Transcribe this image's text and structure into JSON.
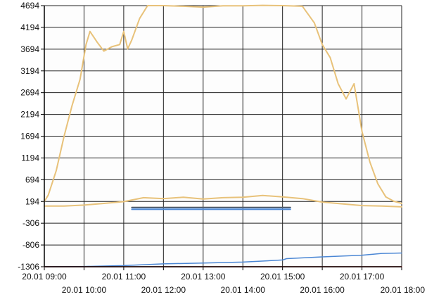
{
  "chart_data": {
    "type": "line",
    "title": "",
    "xlabel": "",
    "ylabel": "",
    "ylim": [
      -1306,
      4694
    ],
    "xlim": [
      "20.01 09:00",
      "20.01 18:00"
    ],
    "x_ticks": [
      "20.01 09:00",
      "20.01 10:00",
      "20.01 11:00",
      "20.01 12:00",
      "20.01 13:00",
      "20.01 14:00",
      "20.01 15:00",
      "20.01 16:00",
      "20.01 17:00",
      "20.01 18:00"
    ],
    "y_ticks": [
      "4694",
      "4194",
      "3694",
      "3194",
      "2694",
      "2194",
      "1694",
      "1194",
      "694",
      "194",
      "-306",
      "-806",
      "-1306"
    ],
    "grid": true,
    "series": [
      {
        "color": "#e8c27a",
        "points": [
          [
            "09:00",
            194
          ],
          [
            "09:06",
            340
          ],
          [
            "09:18",
            900
          ],
          [
            "09:30",
            1700
          ],
          [
            "09:42",
            2400
          ],
          [
            "09:54",
            3000
          ],
          [
            "10:03",
            3800
          ],
          [
            "10:09",
            4100
          ],
          [
            "10:20",
            3850
          ],
          [
            "10:30",
            3650
          ],
          [
            "10:42",
            3750
          ],
          [
            "10:54",
            3800
          ],
          [
            "11:00",
            4100
          ],
          [
            "11:06",
            3700
          ],
          [
            "11:12",
            3900
          ],
          [
            "11:24",
            4400
          ],
          [
            "11:36",
            4694
          ],
          [
            "12:00",
            4694
          ],
          [
            "12:30",
            4680
          ],
          [
            "13:00",
            4660
          ],
          [
            "13:30",
            4690
          ],
          [
            "14:00",
            4690
          ],
          [
            "14:30",
            4700
          ],
          [
            "15:00",
            4694
          ],
          [
            "15:30",
            4680
          ],
          [
            "15:48",
            4300
          ],
          [
            "16:00",
            3800
          ],
          [
            "16:12",
            3500
          ],
          [
            "16:24",
            2900
          ],
          [
            "16:36",
            2550
          ],
          [
            "16:48",
            2900
          ],
          [
            "17:00",
            1800
          ],
          [
            "17:12",
            1100
          ],
          [
            "17:24",
            600
          ],
          [
            "17:36",
            300
          ],
          [
            "17:48",
            200
          ],
          [
            "18:00",
            150
          ]
        ]
      },
      {
        "color": "#e8c27a",
        "points": [
          [
            "09:00",
            90
          ],
          [
            "09:30",
            90
          ],
          [
            "10:00",
            110
          ],
          [
            "10:30",
            150
          ],
          [
            "11:00",
            190
          ],
          [
            "11:30",
            280
          ],
          [
            "12:00",
            260
          ],
          [
            "12:30",
            290
          ],
          [
            "13:00",
            250
          ],
          [
            "13:30",
            280
          ],
          [
            "14:00",
            290
          ],
          [
            "14:30",
            330
          ],
          [
            "15:00",
            300
          ],
          [
            "15:30",
            260
          ],
          [
            "16:00",
            180
          ],
          [
            "16:30",
            140
          ],
          [
            "17:00",
            100
          ],
          [
            "17:30",
            90
          ],
          [
            "18:00",
            70
          ]
        ]
      },
      {
        "color": "#4a86d4",
        "points": [
          [
            "09:00",
            -1306
          ],
          [
            "10:00",
            -1300
          ],
          [
            "11:00",
            -1280
          ],
          [
            "12:00",
            -1240
          ],
          [
            "13:00",
            -1220
          ],
          [
            "14:00",
            -1200
          ],
          [
            "15:00",
            -1150
          ],
          [
            "15:06",
            -1120
          ],
          [
            "16:00",
            -1080
          ],
          [
            "17:00",
            -1040
          ],
          [
            "17:30",
            -1000
          ],
          [
            "18:00",
            -990
          ]
        ]
      },
      {
        "color": "#e23b3b",
        "points": [
          [
            "09:00",
            -1306
          ],
          [
            "18:00",
            -1306
          ]
        ]
      },
      {
        "color": "#4a86d4",
        "points": [
          [
            "11:12",
            40
          ],
          [
            "15:12",
            40
          ]
        ]
      },
      {
        "color": "#4a86d4",
        "points": [
          [
            "11:12",
            10
          ],
          [
            "15:12",
            10
          ]
        ]
      },
      {
        "color": "#555555",
        "points": [
          [
            "11:12",
            60
          ],
          [
            "15:12",
            60
          ]
        ]
      }
    ]
  }
}
